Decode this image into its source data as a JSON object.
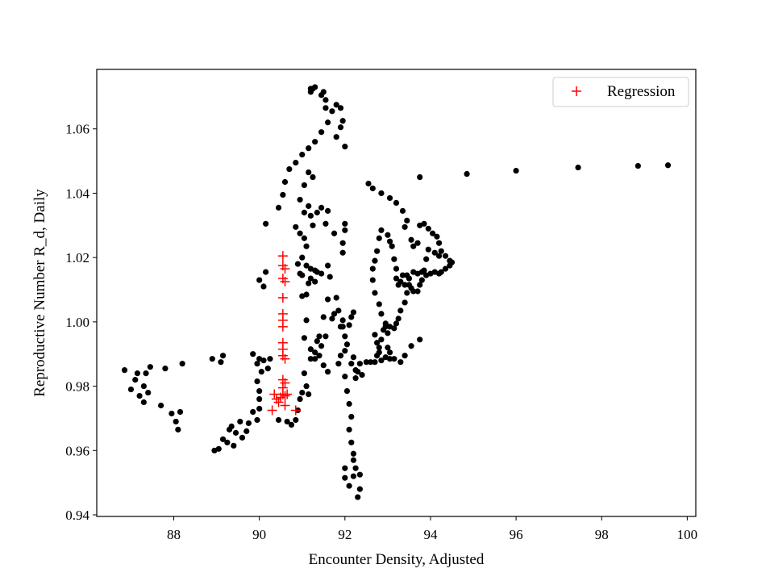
{
  "chart_data": {
    "type": "scatter",
    "title": "",
    "xlabel": "Encounter Density, Adjusted",
    "ylabel": "Reproductive Number R_d, Daily",
    "xlim": [
      86.2,
      100.2
    ],
    "ylim": [
      0.9395,
      1.0785
    ],
    "xticks": [
      88,
      90,
      92,
      94,
      96,
      98,
      100
    ],
    "yticks": [
      0.94,
      0.96,
      0.98,
      1.0,
      1.02,
      1.04,
      1.06
    ],
    "xtick_labels": [
      "88",
      "90",
      "92",
      "94",
      "96",
      "98",
      "100"
    ],
    "ytick_labels": [
      "0.94",
      "0.96",
      "0.98",
      "1.00",
      "1.02",
      "1.04",
      "1.06"
    ],
    "grid": false,
    "legend": {
      "position": "top-right",
      "entries": [
        "Regression"
      ]
    },
    "colors": {
      "observed": "#000000",
      "regression": "#ff0000"
    },
    "series": [
      {
        "marker": "dot",
        "color": "#000000",
        "points": [
          [
            86.85,
            0.985
          ],
          [
            87.0,
            0.979
          ],
          [
            87.1,
            0.982
          ],
          [
            87.15,
            0.984
          ],
          [
            87.2,
            0.977
          ],
          [
            87.3,
            0.975
          ],
          [
            87.3,
            0.98
          ],
          [
            87.35,
            0.984
          ],
          [
            87.4,
            0.978
          ],
          [
            87.45,
            0.986
          ],
          [
            87.7,
            0.974
          ],
          [
            87.8,
            0.9855
          ],
          [
            87.95,
            0.9715
          ],
          [
            88.05,
            0.969
          ],
          [
            88.1,
            0.9665
          ],
          [
            88.15,
            0.972
          ],
          [
            88.2,
            0.987
          ],
          [
            88.9,
            0.9885
          ],
          [
            88.95,
            0.96
          ],
          [
            89.05,
            0.9605
          ],
          [
            89.1,
            0.9875
          ],
          [
            89.15,
            0.9635
          ],
          [
            89.15,
            0.9895
          ],
          [
            89.25,
            0.9625
          ],
          [
            89.3,
            0.9665
          ],
          [
            89.35,
            0.9675
          ],
          [
            89.4,
            0.9615
          ],
          [
            89.45,
            0.9655
          ],
          [
            89.55,
            0.969
          ],
          [
            89.6,
            0.964
          ],
          [
            89.7,
            0.966
          ],
          [
            89.75,
            0.9685
          ],
          [
            89.85,
            0.972
          ],
          [
            89.95,
            0.9695
          ],
          [
            89.85,
            0.99
          ],
          [
            89.95,
            0.987
          ],
          [
            90.05,
            0.9845
          ],
          [
            89.95,
            0.9815
          ],
          [
            90.0,
            0.9785
          ],
          [
            90.0,
            0.976
          ],
          [
            90.0,
            0.973
          ],
          [
            90.0,
            0.9885
          ],
          [
            90.1,
            0.988
          ],
          [
            90.2,
            0.9855
          ],
          [
            90.25,
            0.9885
          ],
          [
            90.0,
            1.013
          ],
          [
            90.1,
            1.011
          ],
          [
            90.15,
            1.0155
          ],
          [
            90.15,
            1.0305
          ],
          [
            90.45,
            1.0355
          ],
          [
            90.55,
            1.0395
          ],
          [
            90.6,
            1.0435
          ],
          [
            90.7,
            1.0475
          ],
          [
            90.85,
            1.0495
          ],
          [
            91.0,
            1.052
          ],
          [
            91.15,
            1.054
          ],
          [
            91.3,
            1.056
          ],
          [
            91.45,
            1.059
          ],
          [
            91.6,
            1.062
          ],
          [
            91.7,
            1.0655
          ],
          [
            91.8,
            1.0675
          ],
          [
            91.9,
            1.0665
          ],
          [
            91.95,
            1.0625
          ],
          [
            91.9,
            1.0605
          ],
          [
            92.0,
            1.0545
          ],
          [
            91.8,
            1.0575
          ],
          [
            91.55,
            1.0665
          ],
          [
            91.45,
            1.0705
          ],
          [
            91.5,
            1.0715
          ],
          [
            91.55,
            1.069
          ],
          [
            91.3,
            1.073
          ],
          [
            91.25,
            1.0725
          ],
          [
            91.2,
            1.0725
          ],
          [
            91.2,
            1.0715
          ],
          [
            91.25,
            1.045
          ],
          [
            91.15,
            1.0465
          ],
          [
            91.05,
            1.0425
          ],
          [
            90.95,
            1.038
          ],
          [
            91.05,
            1.034
          ],
          [
            91.15,
            1.036
          ],
          [
            91.2,
            1.033
          ],
          [
            91.25,
            1.03
          ],
          [
            91.35,
            1.034
          ],
          [
            91.45,
            1.0355
          ],
          [
            91.55,
            1.0305
          ],
          [
            91.6,
            1.0345
          ],
          [
            91.75,
            1.0275
          ],
          [
            91.95,
            1.0245
          ],
          [
            92.0,
            1.0285
          ],
          [
            92.0,
            1.0305
          ],
          [
            91.95,
            1.0215
          ],
          [
            90.85,
            1.0295
          ],
          [
            90.95,
            1.0275
          ],
          [
            91.05,
            1.026
          ],
          [
            91.1,
            1.0235
          ],
          [
            91.0,
            1.02
          ],
          [
            90.9,
            1.018
          ],
          [
            90.95,
            1.015
          ],
          [
            91.0,
            1.0145
          ],
          [
            91.1,
            1.0175
          ],
          [
            91.2,
            1.0165
          ],
          [
            91.2,
            1.0135
          ],
          [
            91.3,
            1.0125
          ],
          [
            91.3,
            1.016
          ],
          [
            91.35,
            1.0155
          ],
          [
            91.45,
            1.015
          ],
          [
            91.6,
            1.0175
          ],
          [
            91.65,
            1.014
          ],
          [
            91.15,
            1.012
          ],
          [
            91.1,
            1.0085
          ],
          [
            91.0,
            1.008
          ],
          [
            91.1,
            1.0005
          ],
          [
            91.05,
            0.995
          ],
          [
            91.2,
            0.9915
          ],
          [
            91.3,
            0.9885
          ],
          [
            91.35,
            0.994
          ],
          [
            91.4,
            0.9955
          ],
          [
            91.45,
            0.9925
          ],
          [
            91.5,
            1.0015
          ],
          [
            91.55,
            0.9955
          ],
          [
            91.6,
            1.007
          ],
          [
            91.7,
            1.001
          ],
          [
            91.75,
            1.0025
          ],
          [
            91.8,
            1.0075
          ],
          [
            91.85,
            1.0035
          ],
          [
            91.9,
            0.9985
          ],
          [
            91.95,
            1.0005
          ],
          [
            92.0,
            0.9955
          ],
          [
            92.05,
            0.993
          ],
          [
            92.1,
            0.999
          ],
          [
            92.15,
            1.0015
          ],
          [
            92.2,
            1.003
          ],
          [
            91.95,
            0.9985
          ],
          [
            92.0,
            0.991
          ],
          [
            91.9,
            0.9895
          ],
          [
            91.85,
            0.987
          ],
          [
            91.6,
            0.9845
          ],
          [
            91.5,
            0.9865
          ],
          [
            91.4,
            0.9895
          ],
          [
            91.3,
            0.9905
          ],
          [
            91.2,
            0.9885
          ],
          [
            91.05,
            0.984
          ],
          [
            91.1,
            0.98
          ],
          [
            91.15,
            0.9775
          ],
          [
            91.0,
            0.978
          ],
          [
            90.95,
            0.976
          ],
          [
            90.9,
            0.9725
          ],
          [
            90.85,
            0.9695
          ],
          [
            90.75,
            0.968
          ],
          [
            90.65,
            0.969
          ],
          [
            90.45,
            0.9695
          ],
          [
            92.0,
            0.983
          ],
          [
            92.05,
            0.9785
          ],
          [
            92.1,
            0.9745
          ],
          [
            92.15,
            0.9705
          ],
          [
            92.1,
            0.9665
          ],
          [
            92.15,
            0.9625
          ],
          [
            92.2,
            0.959
          ],
          [
            92.2,
            0.957
          ],
          [
            92.25,
            0.9545
          ],
          [
            92.0,
            0.9545
          ],
          [
            92.0,
            0.9515
          ],
          [
            92.1,
            0.949
          ],
          [
            92.2,
            0.952
          ],
          [
            92.3,
            0.9455
          ],
          [
            92.35,
            0.948
          ],
          [
            92.35,
            0.9525
          ],
          [
            92.15,
            0.987
          ],
          [
            92.2,
            0.989
          ],
          [
            92.25,
            0.985
          ],
          [
            92.25,
            0.9825
          ],
          [
            92.3,
            0.9845
          ],
          [
            92.35,
            0.987
          ],
          [
            92.4,
            0.9835
          ],
          [
            92.5,
            0.9875
          ],
          [
            92.6,
            0.9875
          ],
          [
            92.55,
            1.043
          ],
          [
            92.65,
            1.0415
          ],
          [
            92.85,
            1.04
          ],
          [
            93.05,
            1.0385
          ],
          [
            93.2,
            1.037
          ],
          [
            93.35,
            1.0345
          ],
          [
            93.4,
            1.0295
          ],
          [
            93.45,
            1.0315
          ],
          [
            93.55,
            1.0255
          ],
          [
            93.6,
            1.0235
          ],
          [
            93.7,
            1.0245
          ],
          [
            93.75,
            1.03
          ],
          [
            93.85,
            1.0305
          ],
          [
            93.95,
            1.029
          ],
          [
            94.05,
            1.0275
          ],
          [
            94.15,
            1.0265
          ],
          [
            94.2,
            1.0245
          ],
          [
            94.25,
            1.022
          ],
          [
            94.35,
            1.0205
          ],
          [
            94.45,
            1.019
          ],
          [
            94.5,
            1.0185
          ],
          [
            94.45,
            1.0175
          ],
          [
            94.35,
            1.0165
          ],
          [
            94.25,
            1.0155
          ],
          [
            94.2,
            1.0205
          ],
          [
            94.1,
            1.0215
          ],
          [
            93.95,
            1.0225
          ],
          [
            93.9,
            1.0195
          ],
          [
            93.85,
            1.016
          ],
          [
            93.8,
            1.0155
          ],
          [
            93.7,
            1.015
          ],
          [
            93.6,
            1.0155
          ],
          [
            93.5,
            1.0135
          ],
          [
            93.45,
            1.0145
          ],
          [
            93.4,
            1.0115
          ],
          [
            93.35,
            1.0145
          ],
          [
            93.3,
            1.0125
          ],
          [
            93.25,
            1.0115
          ],
          [
            93.2,
            1.0135
          ],
          [
            93.2,
            1.0165
          ],
          [
            93.15,
            1.0195
          ],
          [
            93.1,
            1.0235
          ],
          [
            93.05,
            1.025
          ],
          [
            93.0,
            1.027
          ],
          [
            92.85,
            1.0285
          ],
          [
            92.8,
            1.026
          ],
          [
            92.75,
            1.022
          ],
          [
            92.7,
            1.019
          ],
          [
            92.65,
            1.0165
          ],
          [
            92.65,
            1.013
          ],
          [
            92.7,
            1.009
          ],
          [
            92.8,
            1.0055
          ],
          [
            92.85,
            1.0025
          ],
          [
            92.95,
            0.9995
          ],
          [
            93.05,
            0.9985
          ],
          [
            93.15,
            0.998
          ],
          [
            93.2,
            0.9995
          ],
          [
            93.25,
            1.001
          ],
          [
            93.3,
            1.0035
          ],
          [
            93.4,
            1.006
          ],
          [
            93.45,
            1.009
          ],
          [
            93.5,
            1.0115
          ],
          [
            93.55,
            1.0105
          ],
          [
            93.6,
            1.0095
          ],
          [
            93.7,
            1.0095
          ],
          [
            93.75,
            1.0115
          ],
          [
            93.8,
            1.013
          ],
          [
            93.9,
            1.0145
          ],
          [
            94.0,
            1.015
          ],
          [
            94.1,
            1.0155
          ],
          [
            94.2,
            1.015
          ],
          [
            92.7,
            0.9875
          ],
          [
            92.75,
            0.9895
          ],
          [
            92.8,
            0.992
          ],
          [
            92.85,
            0.9945
          ],
          [
            92.9,
            0.9975
          ],
          [
            92.95,
            0.9985
          ],
          [
            93.0,
            0.9965
          ],
          [
            93.0,
            0.992
          ],
          [
            93.05,
            0.9885
          ],
          [
            92.7,
            0.996
          ],
          [
            92.75,
            0.9935
          ],
          [
            92.8,
            0.9905
          ],
          [
            92.85,
            0.988
          ],
          [
            92.95,
            0.989
          ],
          [
            93.05,
            0.9905
          ],
          [
            93.15,
            0.9885
          ],
          [
            93.3,
            0.9875
          ],
          [
            93.4,
            0.9895
          ],
          [
            93.55,
            0.9925
          ],
          [
            93.75,
            0.9945
          ],
          [
            93.75,
            1.045
          ],
          [
            94.85,
            1.046
          ],
          [
            96.0,
            1.047
          ],
          [
            97.45,
            1.048
          ],
          [
            98.85,
            1.0485
          ],
          [
            99.55,
            1.0487
          ]
        ]
      },
      {
        "name": "Regression",
        "marker": "plus",
        "color": "#ff0000",
        "points": [
          [
            90.55,
            1.0205
          ],
          [
            90.55,
            1.0175
          ],
          [
            90.6,
            1.0165
          ],
          [
            90.55,
            1.0135
          ],
          [
            90.6,
            1.0125
          ],
          [
            90.55,
            1.0075
          ],
          [
            90.55,
            1.0025
          ],
          [
            90.55,
            1.0005
          ],
          [
            90.55,
            0.9985
          ],
          [
            90.55,
            0.9935
          ],
          [
            90.55,
            0.9915
          ],
          [
            90.55,
            0.9895
          ],
          [
            90.6,
            0.9885
          ],
          [
            90.55,
            0.982
          ],
          [
            90.6,
            0.981
          ],
          [
            90.55,
            0.9795
          ],
          [
            90.35,
            0.9775
          ],
          [
            90.4,
            0.976
          ],
          [
            90.5,
            0.9765
          ],
          [
            90.55,
            0.9775
          ],
          [
            90.6,
            0.977
          ],
          [
            90.65,
            0.9775
          ],
          [
            90.45,
            0.975
          ],
          [
            90.6,
            0.974
          ],
          [
            90.3,
            0.9725
          ],
          [
            90.85,
            0.9725
          ]
        ]
      }
    ]
  }
}
